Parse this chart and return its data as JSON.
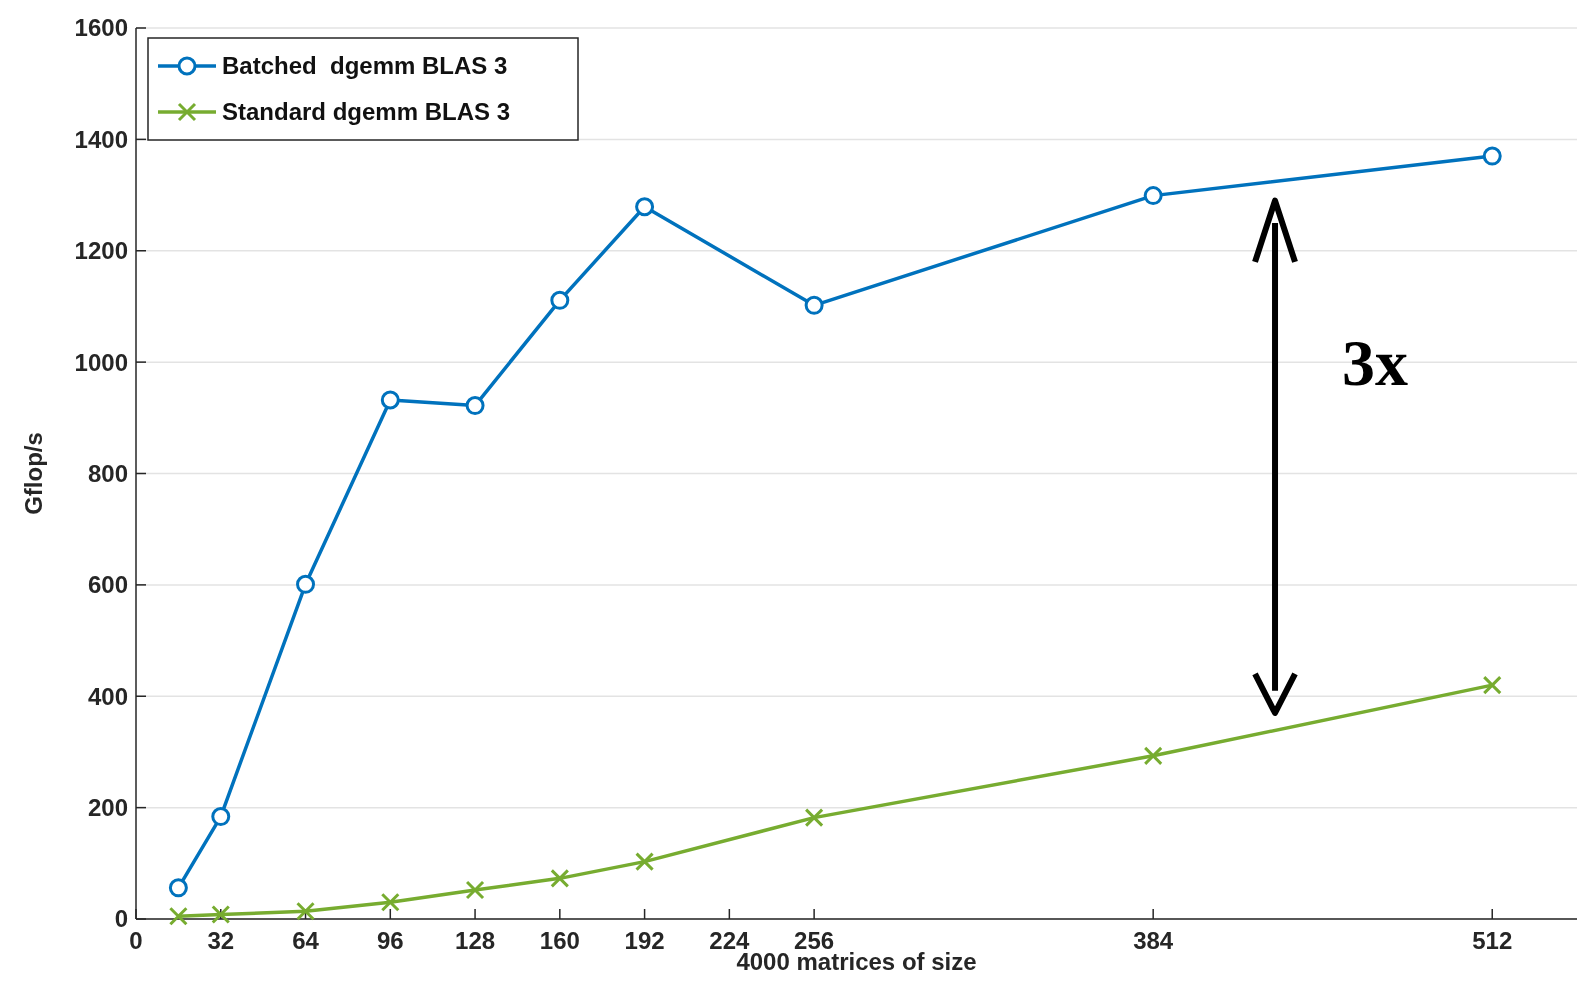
{
  "chart_data": {
    "type": "line",
    "xlabel": "4000 matrices of size",
    "ylabel": "Gflop/s",
    "xlim": [
      0,
      544
    ],
    "xticks": [
      0,
      32,
      64,
      96,
      128,
      160,
      192,
      224,
      256,
      384,
      512
    ],
    "ylim": [
      0,
      1600
    ],
    "yticks": [
      0,
      200,
      400,
      600,
      800,
      1000,
      1200,
      1400,
      1600
    ],
    "grid": "y",
    "legend": "top left",
    "line_style": "solid",
    "annotations": [
      "3x"
    ],
    "series": [
      {
        "name": "Batched  dgemm BLAS 3",
        "color": "#0072bd",
        "marker": "circle",
        "x": [
          16,
          32,
          64,
          96,
          128,
          160,
          192,
          256,
          384,
          512
        ],
        "values": [
          56,
          184,
          601,
          932,
          922,
          1111,
          1279,
          1102,
          1299,
          1370
        ]
      },
      {
        "name": "Standard dgemm BLAS 3",
        "color": "#77ac30",
        "marker": "cross",
        "x": [
          16,
          32,
          64,
          96,
          128,
          160,
          192,
          256,
          384,
          512
        ],
        "values": [
          5,
          8,
          14,
          30,
          52,
          73,
          103,
          182,
          293,
          420
        ]
      }
    ]
  }
}
